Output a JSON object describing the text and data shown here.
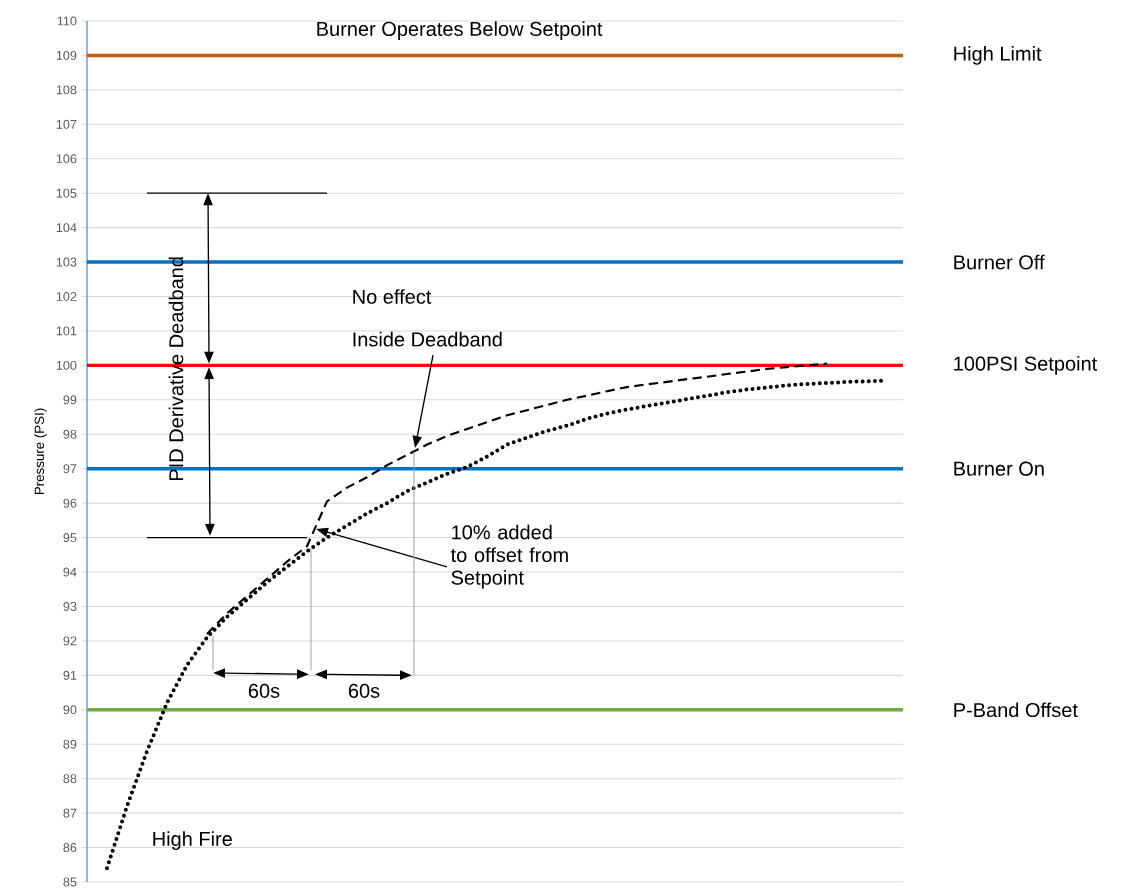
{
  "chart_data": {
    "type": "line",
    "ylabel": "Pressure (PSI)",
    "tick_labels": "y",
    "grid": "y",
    "categories": [
      null,
      null,
      null,
      null,
      null,
      null,
      null,
      null,
      null,
      null,
      null,
      null,
      null,
      null,
      null,
      null,
      null,
      null,
      null,
      null,
      null,
      null,
      null,
      null,
      null,
      null,
      null,
      null,
      null,
      null,
      null,
      null,
      null,
      null,
      null,
      null,
      null,
      null,
      null,
      null,
      null
    ],
    "series": [
      {
        "color": "#000000",
        "line_style": "dotted",
        "values": [
          null,
          85.4,
          87.2,
          88.8,
          90.2,
          91.3,
          92.1,
          92.7,
          93.2,
          93.7,
          94.15,
          94.6,
          95.0,
          95.35,
          95.7,
          96.0,
          96.35,
          96.6,
          96.85,
          97.05,
          97.35,
          97.7,
          97.9,
          98.1,
          98.25,
          98.45,
          98.6,
          98.72,
          98.82,
          98.92,
          99.02,
          99.12,
          99.22,
          99.3,
          99.36,
          99.42,
          99.46,
          99.49,
          99.52,
          99.54,
          99.56
        ]
      },
      {
        "color": "#000000",
        "line_style": "solid",
        "values": [
          null,
          null,
          null,
          105,
          105,
          105,
          105,
          105,
          105,
          105,
          105,
          105,
          105,
          null,
          null,
          null,
          null,
          null,
          null,
          null,
          null,
          null,
          null,
          null,
          null,
          null,
          null,
          null,
          null,
          null,
          null,
          null,
          null,
          null,
          null,
          null,
          null,
          null,
          null,
          null,
          null
        ]
      },
      {
        "color": "#000000",
        "line_style": "solid",
        "values": [
          null,
          null,
          null,
          95,
          95,
          95,
          95,
          95,
          95,
          95,
          95,
          95,
          null,
          null,
          null,
          null,
          null,
          null,
          null,
          null,
          null,
          null,
          null,
          null,
          null,
          null,
          null,
          null,
          null,
          null,
          null,
          null,
          null,
          null,
          null,
          null,
          null,
          null,
          null,
          null,
          null
        ]
      },
      {
        "color": "#000000",
        "line_style": "dashed",
        "values": [
          null,
          null,
          null,
          null,
          null,
          null,
          92.2,
          92.8,
          93.3,
          93.8,
          94.3,
          94.75,
          96.05,
          96.45,
          96.75,
          97.1,
          97.4,
          97.7,
          97.95,
          98.15,
          98.35,
          98.55,
          98.7,
          98.85,
          99.0,
          99.12,
          99.25,
          99.37,
          99.45,
          99.52,
          99.6,
          99.67,
          99.75,
          99.82,
          99.9,
          99.95,
          100.0,
          100.05,
          null,
          null,
          null
        ]
      }
    ],
    "ylim": [
      85,
      110
    ],
    "yticks": [
      85,
      86,
      87,
      88,
      89,
      90,
      91,
      92,
      93,
      94,
      95,
      96,
      97,
      98,
      99,
      100,
      101,
      102,
      103,
      104,
      105,
      106,
      107,
      108,
      109,
      110
    ],
    "ref_lines": [
      {
        "axis": "y",
        "value": 109,
        "label": "High Limit",
        "color": "#c55a11"
      },
      {
        "axis": "y",
        "value": 103,
        "label": "Burner Off",
        "color": "#0070c0"
      },
      {
        "axis": "y",
        "value": 100,
        "label": "100PSI Setpoint",
        "color": "#ff0000"
      },
      {
        "axis": "y",
        "value": 97,
        "label": "Burner On",
        "color": "#0072c4"
      },
      {
        "axis": "y",
        "value": 90,
        "label": "P-Band Offset",
        "color": "#70ad47"
      }
    ],
    "annotations": [
      "Burner Operates Below Setpoint",
      "PID Derivative Deadband",
      "No effect",
      "Inside Deadband",
      "10% added to offset from Setpoint",
      "60s",
      "60s",
      "High Fire"
    ]
  }
}
